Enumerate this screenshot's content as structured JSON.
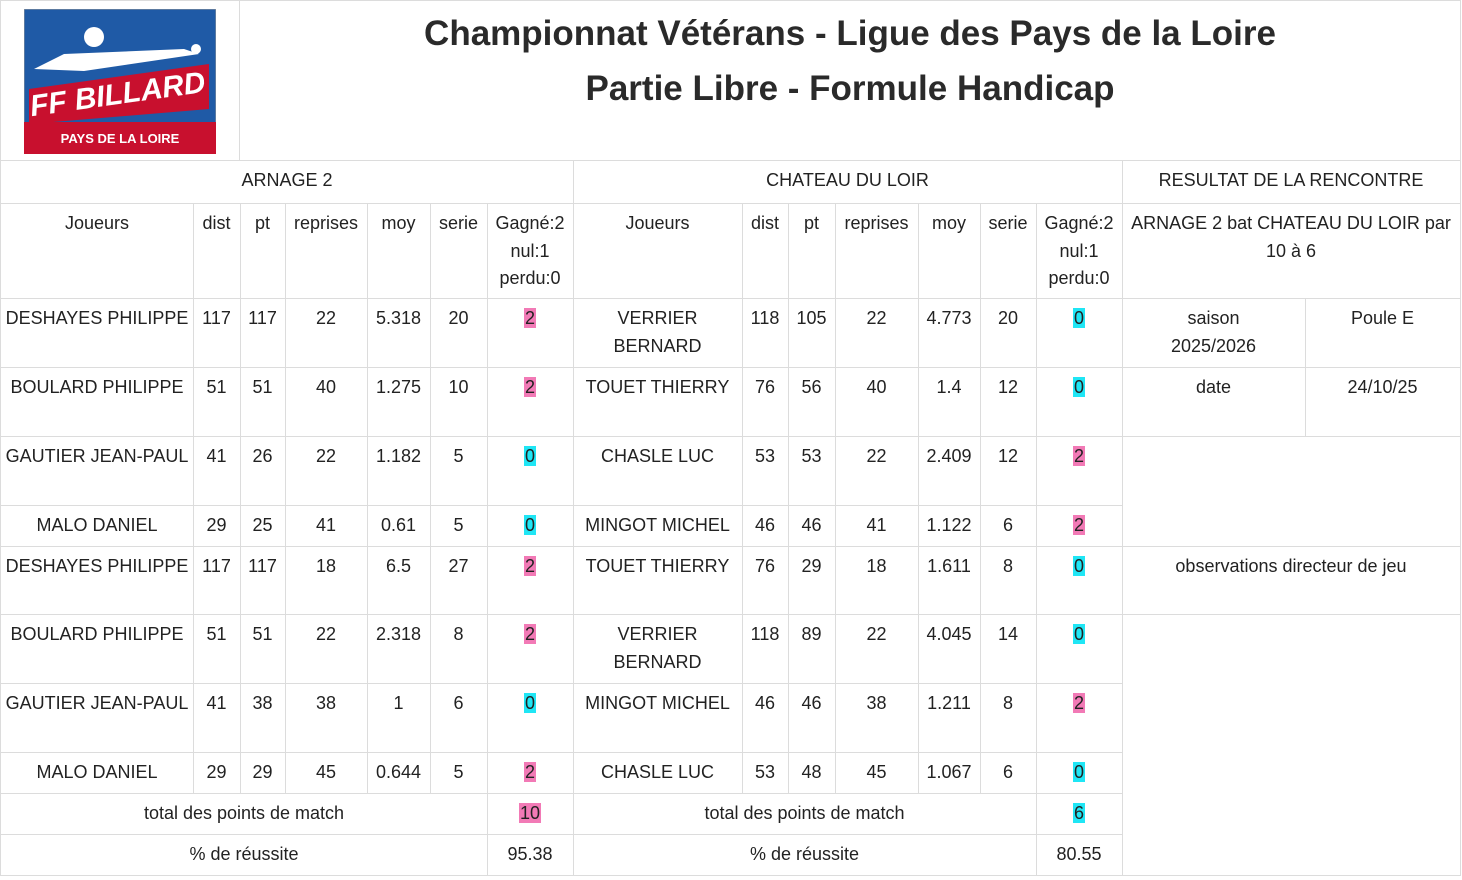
{
  "header": {
    "logo": {
      "brand": "FF BILLARD",
      "region": "PAYS DE LA LOIRE"
    },
    "title": [
      "Championnat Vétérans - Ligue des Pays de la Loire",
      "Partie Libre - Formule Handicap"
    ]
  },
  "teams": [
    "ARNAGE 2",
    "CHATEAU DU LOIR"
  ],
  "columns": [
    "Joueurs",
    "dist",
    "pt",
    "reprises",
    "moy",
    "serie",
    "Gagné:2 nul:1 perdu:0"
  ],
  "win_color": "#f27ab6",
  "loss_color": "#1fe6f5",
  "matches": [
    {
      "home": [
        "DESHAYES PHILIPPE",
        117,
        117,
        22,
        5.318,
        20,
        2
      ],
      "away": [
        "VERRIER BERNARD",
        118,
        105,
        22,
        4.773,
        20,
        0
      ]
    },
    {
      "home": [
        "BOULARD PHILIPPE",
        51,
        51,
        40,
        1.275,
        10,
        2
      ],
      "away": [
        "TOUET THIERRY",
        76,
        56,
        40,
        1.4,
        12,
        0
      ]
    },
    {
      "home": [
        "GAUTIER JEAN-PAUL",
        41,
        26,
        22,
        1.182,
        5,
        0
      ],
      "away": [
        "CHASLE LUC",
        53,
        53,
        22,
        2.409,
        12,
        2
      ]
    },
    {
      "home": [
        "MALO DANIEL",
        29,
        25,
        41,
        0.61,
        5,
        0
      ],
      "away": [
        "MINGOT MICHEL",
        46,
        46,
        41,
        1.122,
        6,
        2
      ]
    },
    {
      "home": [
        "DESHAYES PHILIPPE",
        117,
        117,
        18,
        6.5,
        27,
        2
      ],
      "away": [
        "TOUET THIERRY",
        76,
        29,
        18,
        1.611,
        8,
        0
      ]
    },
    {
      "home": [
        "BOULARD PHILIPPE",
        51,
        51,
        22,
        2.318,
        8,
        2
      ],
      "away": [
        "VERRIER BERNARD",
        118,
        89,
        22,
        4.045,
        14,
        0
      ]
    },
    {
      "home": [
        "GAUTIER JEAN-PAUL",
        41,
        38,
        38,
        1,
        6,
        0
      ],
      "away": [
        "MINGOT MICHEL",
        46,
        46,
        38,
        1.211,
        8,
        2
      ]
    },
    {
      "home": [
        "MALO DANIEL",
        29,
        29,
        45,
        0.644,
        5,
        2
      ],
      "away": [
        "CHASLE LUC",
        53,
        48,
        45,
        1.067,
        6,
        0
      ]
    }
  ],
  "totals": {
    "label": "total des points de match",
    "home": 10,
    "away": 6
  },
  "success": {
    "label": "% de réussite",
    "home": 95.38,
    "away": 80.55
  },
  "result": {
    "title": "RESULTAT DE LA RENCONTRE",
    "summary": "ARNAGE 2 bat CHATEAU DU LOIR par 10 à 6",
    "season_label": "saison",
    "season": "2025/2026",
    "pool": "Poule E",
    "date_label": "date",
    "date": "24/10/25",
    "observations": "observations directeur de jeu"
  }
}
